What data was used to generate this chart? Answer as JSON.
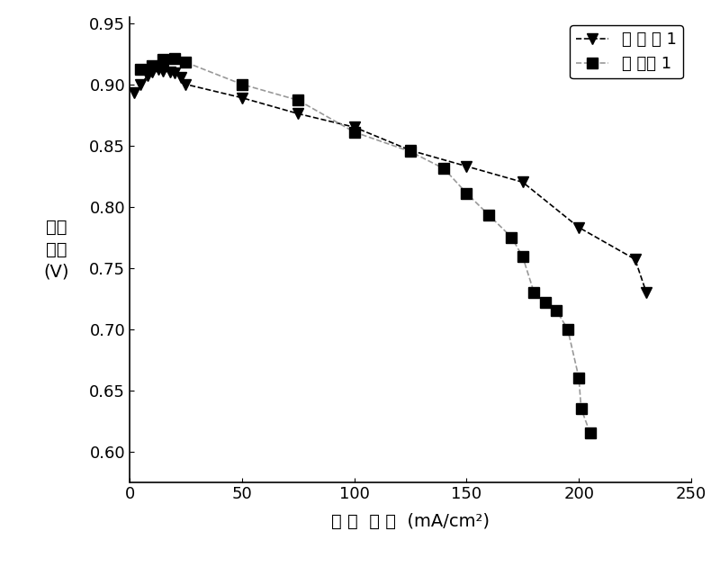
{
  "series1_label": "实 施 例 1",
  "series2_label": "比 较例 1",
  "series1_x": [
    2,
    5,
    8,
    10,
    13,
    15,
    18,
    20,
    23,
    25,
    50,
    75,
    100,
    125,
    150,
    175,
    200,
    225,
    230
  ],
  "series1_y": [
    0.893,
    0.9,
    0.907,
    0.91,
    0.912,
    0.911,
    0.91,
    0.909,
    0.906,
    0.9,
    0.889,
    0.876,
    0.865,
    0.846,
    0.833,
    0.82,
    0.783,
    0.757,
    0.73
  ],
  "series2_x": [
    5,
    10,
    15,
    20,
    25,
    50,
    75,
    100,
    125,
    140,
    150,
    160,
    170,
    175,
    180,
    185,
    190,
    195,
    200,
    201,
    205
  ],
  "series2_y": [
    0.912,
    0.915,
    0.92,
    0.921,
    0.918,
    0.9,
    0.887,
    0.861,
    0.845,
    0.831,
    0.811,
    0.793,
    0.775,
    0.759,
    0.73,
    0.722,
    0.715,
    0.7,
    0.66,
    0.635,
    0.615
  ],
  "xlim": [
    0,
    250
  ],
  "ylim": [
    0.575,
    0.955
  ],
  "xticks": [
    0,
    50,
    100,
    150,
    200,
    250
  ],
  "yticks": [
    0.6,
    0.65,
    0.7,
    0.75,
    0.8,
    0.85,
    0.9,
    0.95
  ],
  "xlabel": "电 流  密 度  (mA/cm²)",
  "ylabel_line1": "阴极",
  "ylabel_line2": "电位",
  "ylabel_line3": "(V)",
  "line1_color": "#000000",
  "line2_color": "#999999",
  "marker1": "v",
  "marker2": "s",
  "markersize1": 9,
  "markersize2": 9,
  "fig_width": 8.0,
  "fig_height": 6.3,
  "dpi": 100
}
